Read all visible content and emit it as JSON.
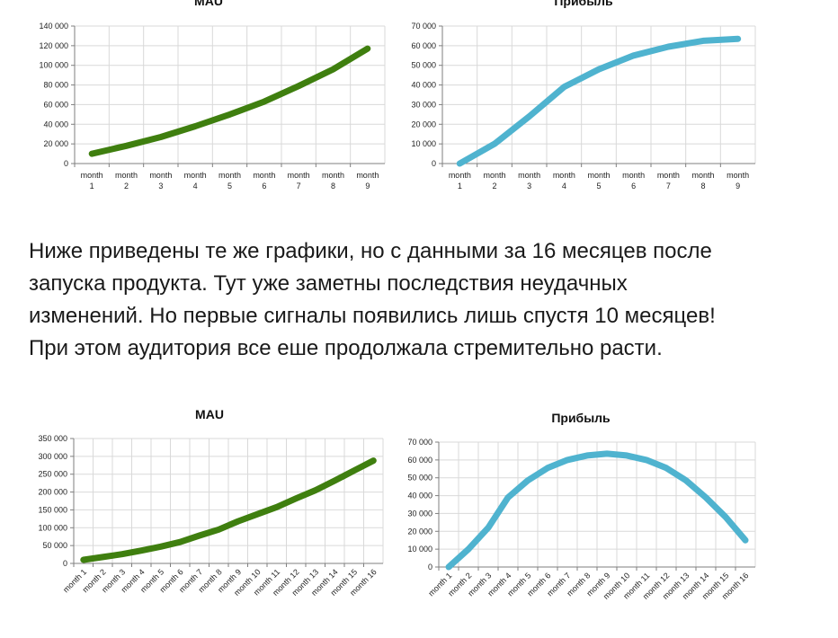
{
  "paragraph": {
    "lines": [
      "Ниже приведены те же графики, но с данными за 16 месяцев после",
      "запуска продукта. Тут уже заметны последствия неудачных",
      "изменений. Но первые сигналы появились лишь спустя 10 месяцев!",
      "При этом аудитория все еше продолжала стремительно расти."
    ]
  },
  "colors": {
    "mau": "#3f7f0f",
    "profit": "#4fb3cf"
  },
  "chart_data": [
    {
      "id": "mau9",
      "type": "line",
      "title": "MAU",
      "categories": [
        "month 1",
        "month 2",
        "month 3",
        "month 4",
        "month 5",
        "month 6",
        "month 7",
        "month 8",
        "month 9"
      ],
      "series": [
        {
          "values": [
            10000,
            18000,
            27000,
            38000,
            50000,
            63000,
            79000,
            96000,
            117000
          ]
        }
      ],
      "ylim": [
        0,
        140000
      ],
      "yticks": [
        "0",
        "20 000",
        "40 000",
        "60 000",
        "80 000",
        "100 000",
        "120 000",
        "140 000"
      ],
      "grid": true
    },
    {
      "id": "profit9",
      "type": "line",
      "title": "Прибыль",
      "categories": [
        "month 1",
        "month 2",
        "month 3",
        "month 4",
        "month 5",
        "month 6",
        "month 7",
        "month 8",
        "month 9"
      ],
      "series": [
        {
          "values": [
            0,
            10000,
            24000,
            39000,
            48000,
            55000,
            59500,
            62500,
            63500
          ]
        }
      ],
      "ylim": [
        0,
        70000
      ],
      "yticks": [
        "0",
        "10 000",
        "20 000",
        "30 000",
        "40 000",
        "50 000",
        "60 000",
        "70 000"
      ],
      "grid": true
    },
    {
      "id": "mau16",
      "type": "line",
      "title": "MAU",
      "categories": [
        "month 1",
        "month 2",
        "month 3",
        "month 4",
        "month 5",
        "month 6",
        "month 7",
        "month 8",
        "month 9",
        "month 10",
        "month 11",
        "month 12",
        "month 13",
        "month 14",
        "month 15",
        "month 16"
      ],
      "series": [
        {
          "values": [
            10000,
            18000,
            26000,
            36000,
            47000,
            60000,
            78000,
            95000,
            118000,
            138000,
            158000,
            182000,
            205000,
            232000,
            260000,
            288000
          ]
        }
      ],
      "ylim": [
        0,
        350000
      ],
      "yticks": [
        "0",
        "50 000",
        "100 000",
        "150 000",
        "200 000",
        "250 000",
        "300 000",
        "350 000"
      ],
      "grid": true
    },
    {
      "id": "profit16",
      "type": "line",
      "title": "Прибыль",
      "categories": [
        "month 1",
        "month 2",
        "month 3",
        "month 4",
        "month 5",
        "month 6",
        "month 7",
        "month 8",
        "month 9",
        "month 10",
        "month 11",
        "month 12",
        "month 13",
        "month 14",
        "month 15",
        "month 16"
      ],
      "series": [
        {
          "values": [
            0,
            10000,
            22000,
            39000,
            48500,
            55500,
            60000,
            62500,
            63500,
            62500,
            60000,
            55500,
            48500,
            39000,
            28000,
            15000
          ]
        }
      ],
      "ylim": [
        0,
        70000
      ],
      "yticks": [
        "0",
        "10 000",
        "20 000",
        "30 000",
        "40 000",
        "50 000",
        "60 000",
        "70 000"
      ],
      "grid": true
    }
  ]
}
